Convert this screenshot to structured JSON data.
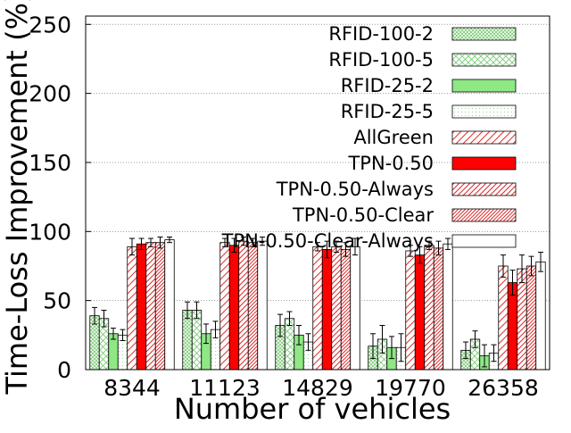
{
  "chart_data": {
    "type": "bar",
    "xlabel": "Number of vehicles",
    "ylabel": "Time-Loss Improvement (%)",
    "ylim": [
      0,
      256
    ],
    "yticks": [
      0,
      50,
      100,
      150,
      200,
      250
    ],
    "grid": "horizontal dotted",
    "legend_position": "top-right",
    "categories": [
      "8344",
      "11123",
      "14829",
      "19770",
      "26358"
    ],
    "series": [
      {
        "name": "RFID-100-2",
        "pattern": "crosshatch-dense",
        "color": "#7ecb78",
        "values": [
          39,
          43,
          32,
          17,
          14
        ],
        "err": [
          6,
          6,
          8,
          9,
          6
        ]
      },
      {
        "name": "RFID-100-5",
        "pattern": "crosshatch-sparse",
        "color": "#7ecb78",
        "values": [
          37,
          43,
          37,
          22,
          22
        ],
        "err": [
          6,
          6,
          5,
          10,
          6
        ]
      },
      {
        "name": "RFID-25-2",
        "pattern": "solid",
        "color": "#8ee884",
        "values": [
          26,
          26,
          25,
          16,
          10
        ],
        "err": [
          4,
          7,
          7,
          8,
          8
        ]
      },
      {
        "name": "RFID-25-5",
        "pattern": "dots",
        "color": "#7ecb78",
        "values": [
          25,
          29,
          20,
          16,
          12
        ],
        "err": [
          4,
          6,
          6,
          10,
          6
        ]
      },
      {
        "name": "AllGreen",
        "pattern": "diag-sparse",
        "color": "#e03030",
        "values": [
          89,
          92,
          89,
          86,
          75
        ],
        "err": [
          6,
          3,
          3,
          4,
          8
        ]
      },
      {
        "name": "TPN-0.50",
        "pattern": "solid",
        "color": "#ff0000",
        "values": [
          91,
          90,
          87,
          83,
          63
        ],
        "err": [
          4,
          5,
          6,
          6,
          9
        ]
      },
      {
        "name": "TPN-0.50-Always",
        "pattern": "diag-medium",
        "color": "#e03030",
        "values": [
          92,
          93,
          89,
          90,
          73
        ],
        "err": [
          3,
          3,
          4,
          3,
          10
        ]
      },
      {
        "name": "TPN-0.50-Clear",
        "pattern": "diag-dense",
        "color": "#e03030",
        "values": [
          92,
          92,
          87,
          88,
          75
        ],
        "err": [
          4,
          3,
          5,
          5,
          7
        ]
      },
      {
        "name": "TPN-0.50-Clear-Always",
        "pattern": "empty",
        "color": "#000000",
        "values": [
          94,
          93,
          89,
          91,
          78
        ],
        "err": [
          2,
          3,
          6,
          4,
          7
        ]
      }
    ]
  }
}
